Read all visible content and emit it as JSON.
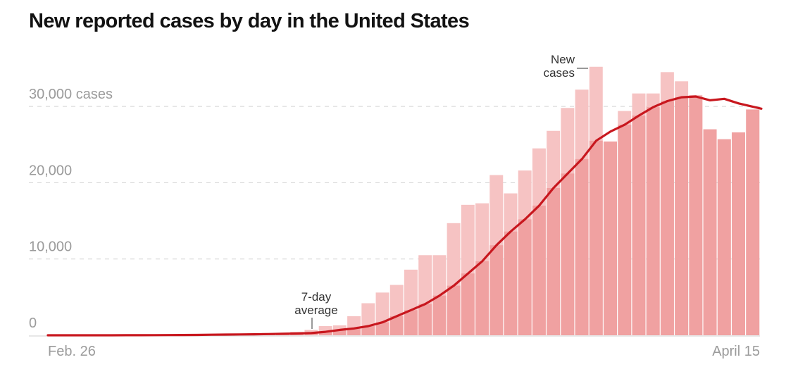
{
  "colors": {
    "bar_light": "#f6c3c3",
    "bar_dark": "#f0a1a1",
    "line": "#c8171e",
    "grid": "#d4d4d4",
    "tick_text": "#9b9b9b",
    "title_text": "#121212",
    "annotation_text": "#333333"
  },
  "chart_data": {
    "type": "bar",
    "title": "New reported cases by day in the United States",
    "xlabel": "",
    "ylabel": "",
    "ylim": [
      0,
      36000
    ],
    "yticks": [
      {
        "value": 0,
        "label": "0"
      },
      {
        "value": 10000,
        "label": "10,000"
      },
      {
        "value": 20000,
        "label": "20,000"
      },
      {
        "value": 30000,
        "label": "30,000 cases"
      }
    ],
    "xtick_labels": [
      {
        "index": 0,
        "label": "Feb. 26"
      },
      {
        "index": 49,
        "label": "April 15"
      }
    ],
    "grid": "horizontal dashed",
    "categories_note": "daily, Feb. 26 through April 15",
    "series": [
      {
        "name": "New cases",
        "type": "bar",
        "values": [
          0,
          10,
          5,
          10,
          20,
          25,
          30,
          50,
          60,
          80,
          100,
          120,
          150,
          200,
          250,
          300,
          300,
          450,
          700,
          1200,
          1300,
          2500,
          4200,
          5600,
          6600,
          8600,
          10500,
          10500,
          14700,
          17100,
          17300,
          21000,
          18600,
          21600,
          24500,
          26800,
          29800,
          32200,
          35200,
          25400,
          29400,
          31700,
          31700,
          34500,
          33300,
          31500,
          27000,
          25700,
          26600,
          29600
        ]
      },
      {
        "name": "7-day average",
        "type": "line",
        "values": [
          0,
          0,
          0,
          0,
          0,
          10,
          10,
          20,
          30,
          40,
          50,
          70,
          90,
          110,
          130,
          160,
          190,
          230,
          300,
          450,
          700,
          900,
          1200,
          1700,
          2500,
          3300,
          4100,
          5200,
          6500,
          8100,
          9700,
          11800,
          13600,
          15200,
          17000,
          19300,
          21200,
          23100,
          25500,
          26700,
          27600,
          28800,
          29900,
          30700,
          31200,
          31300,
          30800,
          31000,
          30400,
          29700
        ]
      }
    ],
    "annotations": [
      {
        "text": [
          "New",
          "cases"
        ],
        "target": "New cases bars"
      },
      {
        "text": [
          "7-day",
          "average"
        ],
        "target": "7-day average line"
      }
    ]
  }
}
